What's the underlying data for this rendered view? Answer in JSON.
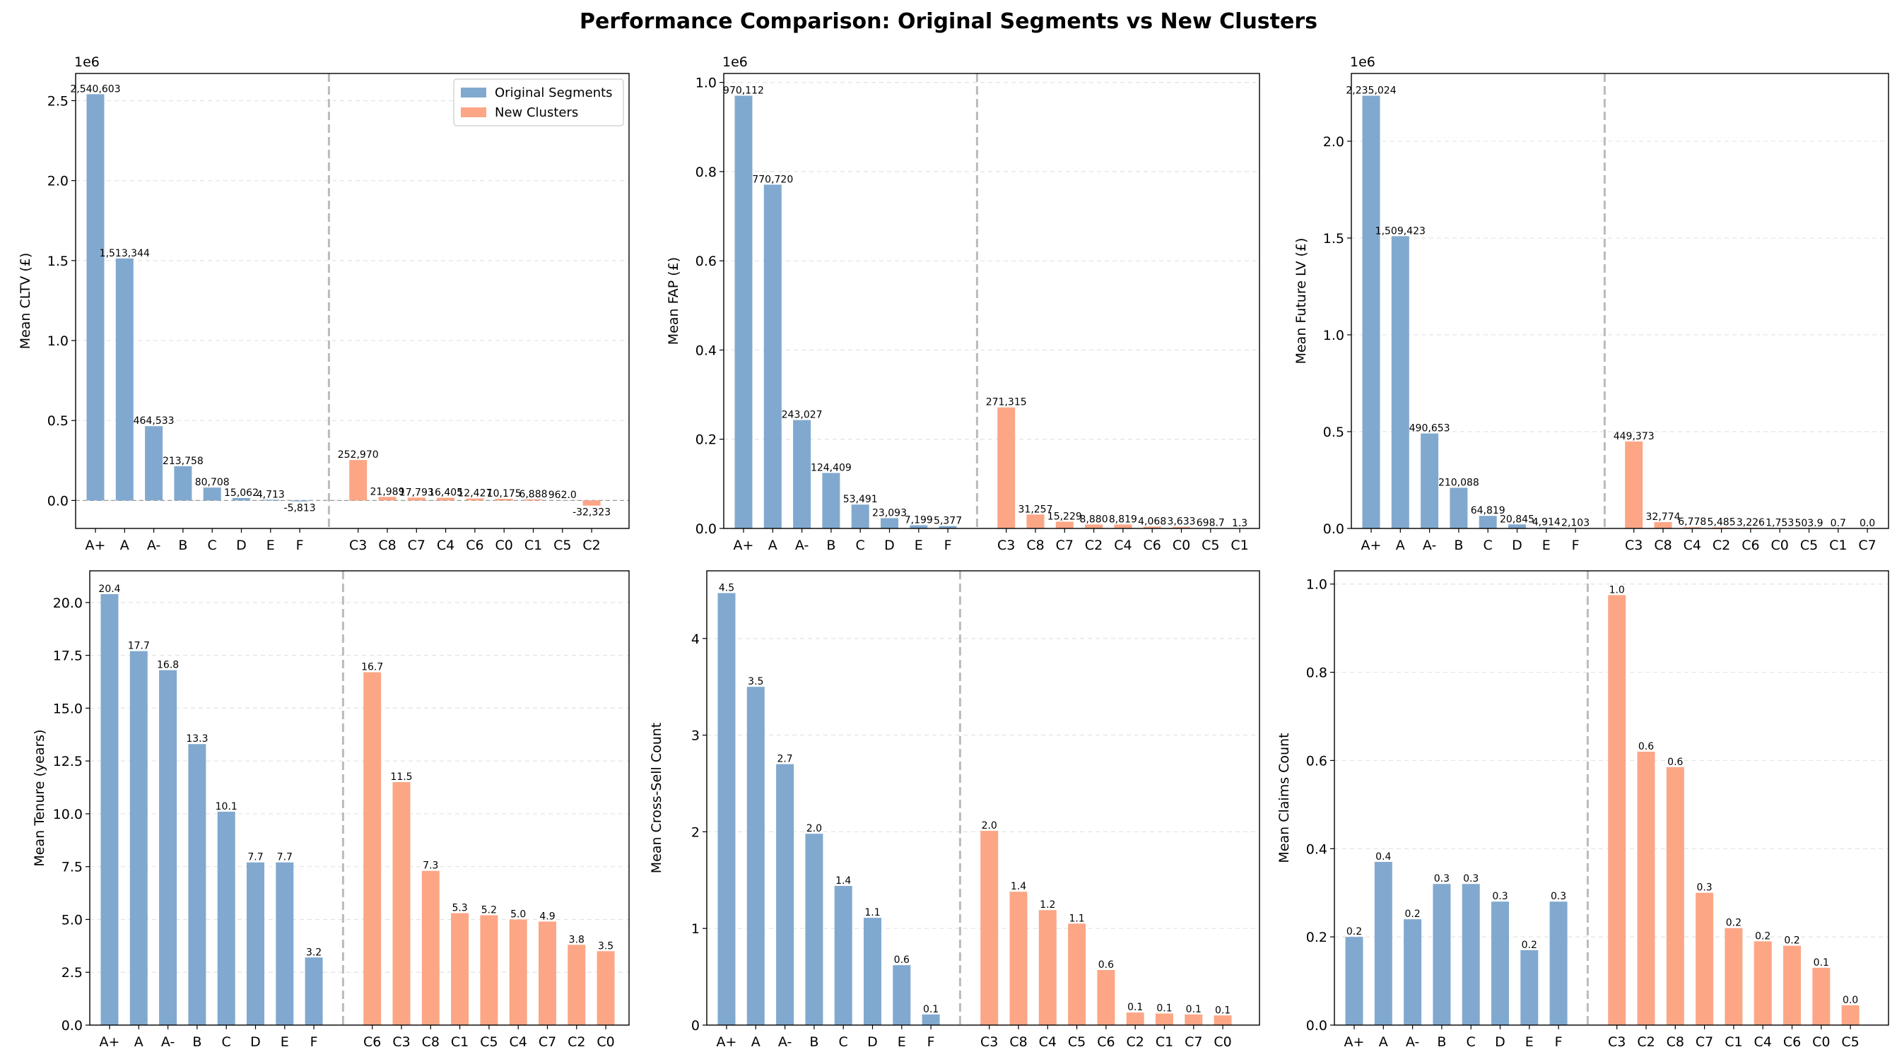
{
  "title": "Performance Comparison: Original Segments vs New Clusters",
  "legend": [
    "Original Segments",
    "New Clusters"
  ],
  "colors": {
    "original": "#81a9cf",
    "clusters": "#fca686",
    "divider": "#bbbbbb",
    "grid": "#e3e3e3"
  },
  "chart_data": [
    {
      "type": "bar",
      "ylabel": "Mean CLTV (£)",
      "multiplier": "1e6",
      "ylim": [
        -0.175,
        2.67
      ],
      "yticks": [
        0.0,
        0.5,
        1.0,
        1.5,
        2.0,
        2.5
      ],
      "yticklabels": [
        "0.0",
        "0.5",
        "1.0",
        "1.5",
        "2.0",
        "2.5"
      ],
      "zero_line": true,
      "legend": "top-right",
      "grid": true,
      "series": [
        {
          "name": "Original Segments",
          "categories": [
            "A+",
            "A",
            "A-",
            "B",
            "C",
            "D",
            "E",
            "F"
          ],
          "values": [
            2.540603,
            1.513344,
            0.464533,
            0.213758,
            0.080708,
            0.015062,
            0.004713,
            -0.005813
          ],
          "labels": [
            "2,540,603",
            "1,513,344",
            "464,533",
            "213,758",
            "80,708",
            "15,062",
            "4,713",
            "-5,813"
          ]
        },
        {
          "name": "New Clusters",
          "categories": [
            "C3",
            "C8",
            "C7",
            "C4",
            "C6",
            "C0",
            "C1",
            "C5",
            "C2"
          ],
          "values": [
            0.25297,
            0.021989,
            0.017793,
            0.016405,
            0.012427,
            0.010175,
            0.006888,
            0.000962,
            -0.032323
          ],
          "labels": [
            "252,970",
            "21,989",
            "17,793",
            "16,405",
            "12,427",
            "10,175",
            "6,888",
            "962.0",
            "-32,323"
          ]
        }
      ]
    },
    {
      "type": "bar",
      "ylabel": "Mean FAP (£)",
      "multiplier": "1e6",
      "ylim": [
        0,
        1.02
      ],
      "yticks": [
        0.0,
        0.2,
        0.4,
        0.6,
        0.8,
        1.0
      ],
      "yticklabels": [
        "0.0",
        "0.2",
        "0.4",
        "0.6",
        "0.8",
        "1.0"
      ],
      "grid": true,
      "series": [
        {
          "name": "Original Segments",
          "categories": [
            "A+",
            "A",
            "A-",
            "B",
            "C",
            "D",
            "E",
            "F"
          ],
          "values": [
            0.970112,
            0.77072,
            0.243027,
            0.124409,
            0.053491,
            0.023093,
            0.007199,
            0.005377
          ],
          "labels": [
            "970,112",
            "770,720",
            "243,027",
            "124,409",
            "53,491",
            "23,093",
            "7,199",
            "5,377"
          ]
        },
        {
          "name": "New Clusters",
          "categories": [
            "C3",
            "C8",
            "C7",
            "C2",
            "C4",
            "C6",
            "C0",
            "C5",
            "C1"
          ],
          "values": [
            0.271315,
            0.031257,
            0.015229,
            0.00888,
            0.008819,
            0.004068,
            0.003633,
            0.0006987,
            1.3e-06
          ],
          "labels": [
            "271,315",
            "31,257",
            "15,229",
            "8,880",
            "8,819",
            "4,068",
            "3,633",
            "698.7",
            "1.3"
          ]
        }
      ]
    },
    {
      "type": "bar",
      "ylabel": "Mean Future LV (£)",
      "multiplier": "1e6",
      "ylim": [
        0,
        2.35
      ],
      "yticks": [
        0.0,
        0.5,
        1.0,
        1.5,
        2.0
      ],
      "yticklabels": [
        "0.0",
        "0.5",
        "1.0",
        "1.5",
        "2.0"
      ],
      "grid": true,
      "series": [
        {
          "name": "Original Segments",
          "categories": [
            "A+",
            "A",
            "A-",
            "B",
            "C",
            "D",
            "E",
            "F"
          ],
          "values": [
            2.235024,
            1.509423,
            0.490653,
            0.210088,
            0.064819,
            0.020845,
            0.004914,
            0.002103
          ],
          "labels": [
            "2,235,024",
            "1,509,423",
            "490,653",
            "210,088",
            "64,819",
            "20,845",
            "4,914",
            "2,103"
          ]
        },
        {
          "name": "New Clusters",
          "categories": [
            "C3",
            "C8",
            "C4",
            "C2",
            "C6",
            "C0",
            "C5",
            "C1",
            "C7"
          ],
          "values": [
            0.449373,
            0.032774,
            0.006778,
            0.005485,
            0.003226,
            0.001753,
            0.0005039,
            7e-07,
            0.0
          ],
          "labels": [
            "449,373",
            "32,774",
            "6,778",
            "5,485",
            "3,226",
            "1,753",
            "503.9",
            "0.7",
            "0.0"
          ]
        }
      ]
    },
    {
      "type": "bar",
      "ylabel": "Mean Tenure (years)",
      "ylim": [
        0,
        21.5
      ],
      "yticks": [
        0.0,
        2.5,
        5.0,
        7.5,
        10.0,
        12.5,
        15.0,
        17.5,
        20.0
      ],
      "yticklabels": [
        "0.0",
        "2.5",
        "5.0",
        "7.5",
        "10.0",
        "12.5",
        "15.0",
        "17.5",
        "20.0"
      ],
      "grid": true,
      "series": [
        {
          "name": "Original Segments",
          "categories": [
            "A+",
            "A",
            "A-",
            "B",
            "C",
            "D",
            "E",
            "F"
          ],
          "values": [
            20.4,
            17.7,
            16.8,
            13.3,
            10.1,
            7.7,
            7.7,
            3.2
          ],
          "labels": [
            "20.4",
            "17.7",
            "16.8",
            "13.3",
            "10.1",
            "7.7",
            "7.7",
            "3.2"
          ]
        },
        {
          "name": "New Clusters",
          "categories": [
            "C6",
            "C3",
            "C8",
            "C1",
            "C5",
            "C4",
            "C7",
            "C2",
            "C0"
          ],
          "values": [
            16.7,
            11.5,
            7.3,
            5.3,
            5.2,
            5.0,
            4.9,
            3.8,
            3.5
          ],
          "labels": [
            "16.7",
            "11.5",
            "7.3",
            "5.3",
            "5.2",
            "5.0",
            "4.9",
            "3.8",
            "3.5"
          ]
        }
      ]
    },
    {
      "type": "bar",
      "ylabel": "Mean Cross-Sell Count",
      "ylim": [
        0,
        4.7
      ],
      "yticks": [
        0,
        1,
        2,
        3,
        4
      ],
      "yticklabels": [
        "0",
        "1",
        "2",
        "3",
        "4"
      ],
      "grid": true,
      "series": [
        {
          "name": "Original Segments",
          "categories": [
            "A+",
            "A",
            "A-",
            "B",
            "C",
            "D",
            "E",
            "F"
          ],
          "values": [
            4.47,
            3.5,
            2.7,
            1.98,
            1.44,
            1.11,
            0.62,
            0.11
          ],
          "labels": [
            "4.5",
            "3.5",
            "2.7",
            "2.0",
            "1.4",
            "1.1",
            "0.6",
            "0.1"
          ]
        },
        {
          "name": "New Clusters",
          "categories": [
            "C3",
            "C8",
            "C4",
            "C5",
            "C6",
            "C2",
            "C1",
            "C7",
            "C0"
          ],
          "values": [
            2.01,
            1.38,
            1.19,
            1.05,
            0.57,
            0.13,
            0.12,
            0.11,
            0.1
          ],
          "labels": [
            "2.0",
            "1.4",
            "1.2",
            "1.1",
            "0.6",
            "0.1",
            "0.1",
            "0.1",
            "0.1"
          ]
        }
      ]
    },
    {
      "type": "bar",
      "ylabel": "Mean Claims Count",
      "ylim": [
        0,
        1.03
      ],
      "yticks": [
        0.0,
        0.2,
        0.4,
        0.6,
        0.8,
        1.0
      ],
      "yticklabels": [
        "0.0",
        "0.2",
        "0.4",
        "0.6",
        "0.8",
        "1.0"
      ],
      "grid": true,
      "series": [
        {
          "name": "Original Segments",
          "categories": [
            "A+",
            "A",
            "A-",
            "B",
            "C",
            "D",
            "E",
            "F"
          ],
          "values": [
            0.2,
            0.37,
            0.24,
            0.32,
            0.32,
            0.28,
            0.17,
            0.28
          ],
          "labels": [
            "0.2",
            "0.4",
            "0.2",
            "0.3",
            "0.3",
            "0.3",
            "0.2",
            "0.3"
          ]
        },
        {
          "name": "New Clusters",
          "categories": [
            "C3",
            "C2",
            "C8",
            "C7",
            "C1",
            "C4",
            "C6",
            "C0",
            "C5"
          ],
          "values": [
            0.975,
            0.62,
            0.585,
            0.3,
            0.22,
            0.19,
            0.18,
            0.13,
            0.045
          ],
          "labels": [
            "1.0",
            "0.6",
            "0.6",
            "0.3",
            "0.2",
            "0.2",
            "0.2",
            "0.1",
            "0.0"
          ]
        }
      ]
    }
  ]
}
